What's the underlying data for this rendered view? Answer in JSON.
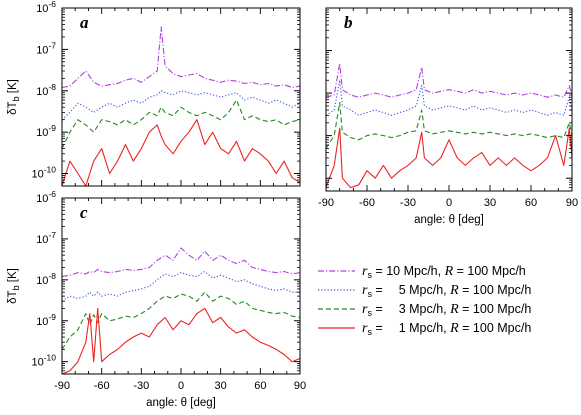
{
  "chart_data": [
    {
      "panel": "a",
      "type": "line",
      "xlabel": "",
      "ylabel": "δT_b [K]",
      "xlim": [
        -90,
        90
      ],
      "ylim": [
        5e-11,
        1e-06
      ],
      "yscale": "log",
      "x_ticks": [],
      "y_ticks": [
        "10^-6",
        "10^-7",
        "10^-8",
        "10^-9",
        "10^-10"
      ],
      "x": [
        -90,
        -84,
        -78,
        -72,
        -66,
        -60,
        -54,
        -48,
        -42,
        -36,
        -30,
        -24,
        -18,
        -15,
        -12,
        -6,
        0,
        6,
        12,
        18,
        24,
        30,
        36,
        42,
        48,
        54,
        60,
        66,
        72,
        78,
        84,
        90
      ],
      "series": [
        {
          "name": "r_s = 10 Mpc/h, R = 100 Mpc/h",
          "color": "#b040e0",
          "dash": "dashdot",
          "values": [
            1.2e-08,
            1.3e-08,
            2e-08,
            3e-08,
            1.6e-08,
            1.3e-08,
            1.4e-08,
            1.5e-08,
            1.8e-08,
            2e-08,
            1.6e-08,
            2.2e-08,
            3e-08,
            3.5e-07,
            4e-08,
            2.6e-08,
            2.2e-08,
            2.4e-08,
            2.6e-08,
            2e-08,
            1.8e-08,
            1.6e-08,
            1.8e-08,
            1.7e-08,
            1.5e-08,
            1.6e-08,
            1.4e-08,
            1.5e-08,
            1.3e-08,
            1.4e-08,
            1.2e-08,
            1.3e-08
          ]
        },
        {
          "name": "r_s = 5 Mpc/h, R = 100 Mpc/h",
          "color": "#3355dd",
          "dash": "dotted",
          "values": [
            2e-09,
            3e-09,
            5e-09,
            4e-09,
            3e-09,
            4e-09,
            5e-09,
            4e-09,
            5e-09,
            6e-09,
            5e-09,
            7e-09,
            8e-09,
            1e-08,
            9e-09,
            8e-09,
            1e-08,
            9e-09,
            8e-09,
            9e-09,
            8e-09,
            7e-09,
            8e-09,
            9e-09,
            6e-09,
            7e-09,
            6e-09,
            5e-09,
            6e-09,
            5e-09,
            4e-09,
            5e-09
          ]
        },
        {
          "name": "r_s = 3 Mpc/h, R = 100 Mpc/h",
          "color": "#228822",
          "dash": "dashed",
          "values": [
            4e-10,
            1e-09,
            2e-09,
            1.5e-09,
            1e-09,
            2e-09,
            1.8e-09,
            1.5e-09,
            2e-09,
            1.5e-09,
            2e-09,
            3e-09,
            2.5e-09,
            4e-09,
            3e-09,
            2.5e-09,
            4e-09,
            3e-09,
            2.5e-09,
            3e-09,
            2.5e-09,
            2e-09,
            3e-09,
            6e-09,
            2e-09,
            2.5e-09,
            2e-09,
            1.8e-09,
            2e-09,
            1.5e-09,
            1.8e-09,
            2e-09
          ]
        },
        {
          "name": "r_s = 1 Mpc/h, R = 100 Mpc/h",
          "color": "#ee2222",
          "dash": "solid",
          "values": [
            5e-11,
            2e-10,
            1e-10,
            5e-11,
            2e-10,
            4e-10,
            1e-10,
            2e-10,
            5e-10,
            2e-10,
            4e-10,
            1e-09,
            1.5e-09,
            8e-10,
            5e-10,
            3e-10,
            6e-10,
            1e-09,
            2e-09,
            5e-10,
            1e-09,
            4e-10,
            3e-10,
            6e-10,
            2e-10,
            4e-10,
            3e-10,
            2e-10,
            1e-10,
            2e-10,
            8e-11,
            6e-11
          ]
        }
      ]
    },
    {
      "panel": "b",
      "type": "line",
      "xlabel": "angle: θ [deg]",
      "ylabel": "",
      "xlim": [
        -90,
        90
      ],
      "ylim": [
        5e-11,
        1e-06
      ],
      "yscale": "log",
      "x_ticks": [
        "-90",
        "-60",
        "-30",
        "0",
        "30",
        "60",
        "90"
      ],
      "y_ticks": [],
      "x": [
        -90,
        -84,
        -80,
        -78,
        -72,
        -66,
        -60,
        -54,
        -48,
        -42,
        -36,
        -30,
        -24,
        -20,
        -18,
        -12,
        -6,
        0,
        6,
        12,
        18,
        24,
        30,
        36,
        42,
        48,
        54,
        60,
        66,
        72,
        78,
        84,
        88,
        90
      ],
      "series": [
        {
          "name": "r_s = 10 Mpc/h, R = 100 Mpc/h",
          "color": "#b040e0",
          "dash": "dashdot",
          "values": [
            8e-09,
            9e-09,
            5e-08,
            1.2e-08,
            9e-09,
            8e-09,
            9e-09,
            1e-08,
            9e-09,
            8e-09,
            9e-09,
            1e-08,
            1.2e-08,
            4e-08,
            1.2e-08,
            1e-08,
            1.1e-08,
            1.2e-08,
            1.1e-08,
            1e-08,
            1.2e-08,
            1e-08,
            1.1e-08,
            1e-08,
            9e-09,
            1e-08,
            9e-09,
            1e-08,
            9e-09,
            8e-09,
            9e-09,
            8e-09,
            1.5e-08,
            9e-09
          ]
        },
        {
          "name": "r_s = 5 Mpc/h, R = 100 Mpc/h",
          "color": "#3355dd",
          "dash": "dotted",
          "values": [
            3e-09,
            4e-09,
            2e-08,
            5e-09,
            4e-09,
            3e-09,
            3.5e-09,
            4e-09,
            3.5e-09,
            3e-09,
            3.5e-09,
            4e-09,
            5e-09,
            1.5e-08,
            5e-09,
            4e-09,
            4.5e-09,
            5e-09,
            4.5e-09,
            4e-09,
            5e-09,
            4e-09,
            4.5e-09,
            4e-09,
            3.5e-09,
            4e-09,
            3.5e-09,
            4e-09,
            3.5e-09,
            3e-09,
            3.5e-09,
            3e-09,
            8e-09,
            3.5e-09
          ]
        },
        {
          "name": "r_s = 3 Mpc/h, R = 100 Mpc/h",
          "color": "#228822",
          "dash": "dashed",
          "values": [
            5e-10,
            1e-09,
            6e-09,
            1.2e-09,
            9e-10,
            8e-10,
            1e-09,
            1.1e-09,
            1e-09,
            9e-10,
            1e-09,
            1.2e-09,
            1.3e-09,
            4e-09,
            1.3e-09,
            1.1e-09,
            1.2e-09,
            1.3e-09,
            1.2e-09,
            1.1e-09,
            1.2e-09,
            1.1e-09,
            1.2e-09,
            1.1e-09,
            1e-09,
            1.1e-09,
            1e-09,
            1.1e-09,
            1e-09,
            9e-10,
            1e-09,
            9e-10,
            2e-09,
            1e-09
          ]
        },
        {
          "name": "r_s = 1 Mpc/h, R = 100 Mpc/h",
          "color": "#ee2222",
          "dash": "solid",
          "values": [
            6e-11,
            2e-10,
            1.5e-09,
            1e-10,
            6e-11,
            7e-11,
            1.5e-10,
            1e-10,
            2e-10,
            1e-10,
            1.5e-10,
            2e-10,
            3e-10,
            1.2e-09,
            3e-10,
            2e-10,
            3e-10,
            8e-10,
            3e-10,
            2e-10,
            3e-10,
            4e-10,
            2e-10,
            3e-10,
            2e-10,
            3e-10,
            2e-10,
            1.5e-10,
            2e-10,
            3e-10,
            1e-09,
            2e-10,
            1.5e-09,
            3e-10
          ]
        }
      ]
    },
    {
      "panel": "c",
      "type": "line",
      "xlabel": "angle: θ [deg]",
      "ylabel": "δT_b [K]",
      "xlim": [
        -90,
        90
      ],
      "ylim": [
        5e-11,
        1e-06
      ],
      "yscale": "log",
      "x_ticks": [
        "-90",
        "-60",
        "-30",
        "0",
        "30",
        "60",
        "90"
      ],
      "y_ticks": [
        "10^-6",
        "10^-7",
        "10^-8",
        "10^-9",
        "10^-10"
      ],
      "x": [
        -90,
        -84,
        -78,
        -72,
        -69,
        -66,
        -63,
        -60,
        -54,
        -48,
        -42,
        -36,
        -30,
        -24,
        -18,
        -12,
        -6,
        0,
        6,
        12,
        18,
        24,
        30,
        36,
        42,
        48,
        54,
        60,
        66,
        72,
        78,
        84,
        90
      ],
      "series": [
        {
          "name": "r_s = 10 Mpc/h, R = 100 Mpc/h",
          "color": "#b040e0",
          "dash": "dashdot",
          "values": [
            1.2e-08,
            1.3e-08,
            1.5e-08,
            1.4e-08,
            1.6e-08,
            1.5e-08,
            1.8e-08,
            1.6e-08,
            1.5e-08,
            1.6e-08,
            1.8e-08,
            1.7e-08,
            1.8e-08,
            2e-08,
            3e-08,
            4e-08,
            3e-08,
            6e-08,
            4e-08,
            3e-08,
            5e-08,
            3e-08,
            4e-08,
            3e-08,
            2.5e-08,
            3e-08,
            2e-08,
            1.8e-08,
            1.6e-08,
            1.5e-08,
            1.6e-08,
            1.4e-08,
            1.5e-08
          ]
        },
        {
          "name": "r_s = 5 Mpc/h, R = 100 Mpc/h",
          "color": "#3355dd",
          "dash": "dotted",
          "values": [
            3e-09,
            4e-09,
            3.5e-09,
            4e-09,
            5e-09,
            4e-09,
            5e-09,
            4e-09,
            4.5e-09,
            4e-09,
            5e-09,
            5.5e-09,
            6e-09,
            7e-09,
            1e-08,
            1.4e-08,
            1.2e-08,
            1.5e-08,
            1.3e-08,
            1.2e-08,
            1.6e-08,
            1.1e-08,
            1.3e-08,
            1.1e-08,
            9e-09,
            1e-08,
            8e-09,
            7e-09,
            6e-09,
            5.5e-09,
            6e-09,
            5e-09,
            5e-09
          ]
        },
        {
          "name": "r_s = 3 Mpc/h, R = 100 Mpc/h",
          "color": "#228822",
          "dash": "dashed",
          "values": [
            2e-10,
            4e-10,
            6e-10,
            1.5e-09,
            8e-10,
            1.4e-09,
            9e-10,
            1.5e-09,
            1e-09,
            1.1e-09,
            1.3e-09,
            1.2e-09,
            1.5e-09,
            2e-09,
            3e-09,
            4e-09,
            3.5e-09,
            4.5e-09,
            4e-09,
            3e-09,
            5e-09,
            3e-09,
            4e-09,
            3.5e-09,
            2.5e-09,
            3e-09,
            2e-09,
            1.8e-09,
            1.6e-09,
            1.5e-09,
            1.6e-09,
            1.3e-09,
            1.2e-09
          ]
        },
        {
          "name": "r_s = 1 Mpc/h, R = 100 Mpc/h",
          "color": "#ee2222",
          "dash": "solid",
          "values": [
            5e-11,
            6e-11,
            1e-10,
            3e-10,
            1.5e-09,
            1e-10,
            2e-09,
            1e-10,
            1.5e-10,
            2e-10,
            3e-10,
            4e-10,
            5e-10,
            4e-10,
            8e-10,
            1.2e-09,
            6e-10,
            1e-09,
            8e-10,
            1.5e-09,
            2e-09,
            9e-10,
            1.2e-09,
            7e-10,
            5e-10,
            6e-10,
            4e-10,
            3e-10,
            2.5e-10,
            2e-10,
            1.5e-10,
            1e-10,
            1.2e-10
          ]
        }
      ]
    }
  ],
  "legend": {
    "position": "right-middle",
    "entries": [
      {
        "rs_value": "10 Mpc/h,",
        "r_value": "= 100 Mpc/h",
        "color": "#b040e0",
        "dash": "dashdot"
      },
      {
        "rs_value": "  5 Mpc/h,",
        "r_value": "= 100 Mpc/h",
        "color": "#3355dd",
        "dash": "dotted"
      },
      {
        "rs_value": "  3 Mpc/h,",
        "r_value": "= 100 Mpc/h",
        "color": "#228822",
        "dash": "dashed"
      },
      {
        "rs_value": "  1 Mpc/h,",
        "r_value": "= 100 Mpc/h",
        "color": "#ee2222",
        "dash": "solid"
      }
    ]
  }
}
